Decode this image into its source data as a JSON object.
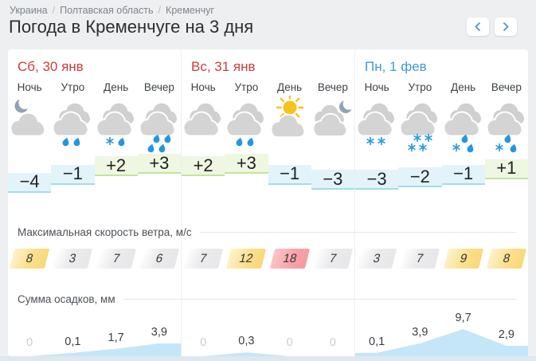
{
  "breadcrumb": {
    "separator": "/",
    "items": [
      {
        "label": "Украина"
      },
      {
        "label": "Полтавская область"
      },
      {
        "label": "Кременчуг"
      }
    ]
  },
  "title": "Погода в Кременчуге на 3 дня",
  "nav": {
    "prev_icon": "chevron-left-icon",
    "next_icon": "chevron-right-icon"
  },
  "time_labels": [
    "Ночь",
    "Утро",
    "День",
    "Вечер"
  ],
  "sections": {
    "wind": "Максимальная скорость ветра, м/с",
    "precip": "Сумма осадков, мм"
  },
  "wind_thresholds": {
    "strong_min": 8,
    "storm_min": 15
  },
  "days": [
    {
      "date": "Сб, 30 янв",
      "accent": "red",
      "icons": [
        "moon-cloud",
        "clouds-rain-2",
        "clouds-snow-1-rain-1",
        "clouds-rain-4"
      ],
      "temps": [
        {
          "label": "−4",
          "value": -4
        },
        {
          "label": "−1",
          "value": -1
        },
        {
          "label": "+2",
          "value": 2
        },
        {
          "label": "+3",
          "value": 3
        }
      ],
      "wind": [
        8,
        3,
        7,
        6
      ],
      "precip": [
        {
          "label": "0",
          "value": 0
        },
        {
          "label": "0,1",
          "value": 0.1
        },
        {
          "label": "1,7",
          "value": 1.7
        },
        {
          "label": "3,9",
          "value": 3.9
        }
      ]
    },
    {
      "date": "Вс, 31 янв",
      "accent": "red",
      "icons": [
        "clouds",
        "clouds-rain-2",
        "sun-cloud",
        "cloud-moon"
      ],
      "temps": [
        {
          "label": "+2",
          "value": 2
        },
        {
          "label": "+3",
          "value": 3
        },
        {
          "label": "−1",
          "value": -1
        },
        {
          "label": "−3",
          "value": -3
        }
      ],
      "wind": [
        7,
        12,
        18,
        7
      ],
      "precip": [
        {
          "label": "0",
          "value": 0
        },
        {
          "label": "0,3",
          "value": 0.3
        },
        {
          "label": "0",
          "value": 0
        },
        {
          "label": "0",
          "value": 0
        }
      ]
    },
    {
      "date": "Пн, 1 фев",
      "accent": "blue",
      "icons": [
        "clouds-snow-2",
        "clouds-snow-4",
        "clouds-rain-2-snow-1",
        "clouds-rain-2-snow-1"
      ],
      "temps": [
        {
          "label": "−3",
          "value": -3
        },
        {
          "label": "−2",
          "value": -2
        },
        {
          "label": "−1",
          "value": -1
        },
        {
          "label": "+1",
          "value": 1
        }
      ],
      "wind": [
        3,
        7,
        9,
        8
      ],
      "precip": [
        {
          "label": "0,1",
          "value": 0.1
        },
        {
          "label": "3,9",
          "value": 3.9
        },
        {
          "label": "9,7",
          "value": 9.7
        },
        {
          "label": "2,9",
          "value": 2.9
        }
      ]
    }
  ],
  "colors": {
    "date_red": "#cd3d3d",
    "date_blue": "#3e9ad6",
    "temp_neg_bg": "#e2f3fa",
    "temp_neg_border": "#a2dcee",
    "temp_pos_bg": "#eef7e2",
    "temp_pos_border": "#c3e49d",
    "precip_area": "#c5e6f9",
    "precip_zero_text": "#c9ced3",
    "rain": "#2196e3",
    "snow": "#2d9be0",
    "cloud": "#d4d4d4",
    "cloud_back": "#d0d0d0",
    "moon": "#8da3b8",
    "sun": "#f5c31d",
    "chevron": "#4a94d8"
  }
}
